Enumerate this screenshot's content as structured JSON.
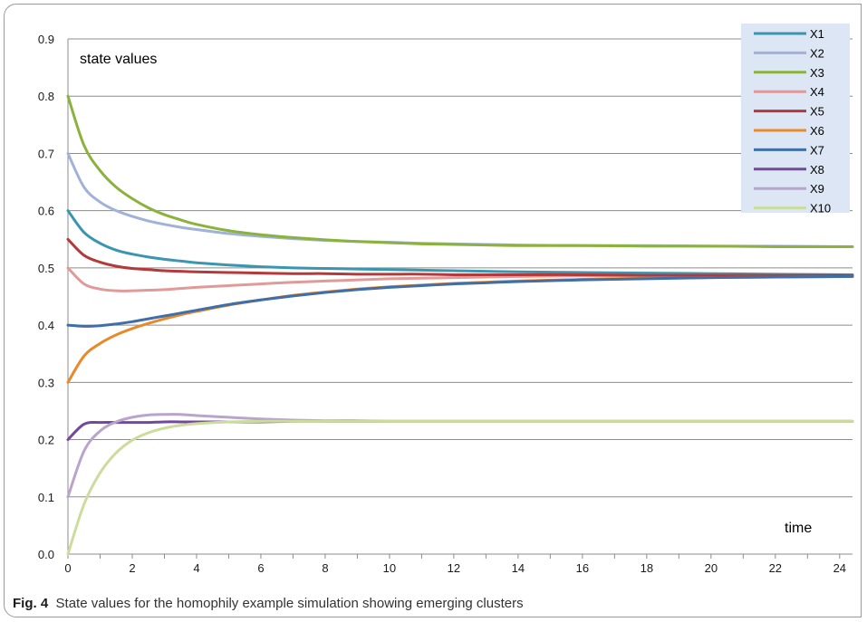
{
  "caption": {
    "label": "Fig. 4",
    "text": "State values for the homophily example simulation showing emerging clusters"
  },
  "chart_data": {
    "type": "line",
    "title": "",
    "ylabel": "state values",
    "xlabel": "time",
    "xlim": [
      0,
      24.4
    ],
    "ylim": [
      0,
      0.9
    ],
    "xticks": [
      0,
      2,
      4,
      6,
      8,
      10,
      12,
      14,
      16,
      18,
      20,
      22,
      24
    ],
    "yticks": [
      "0.0",
      "0.1",
      "0.2",
      "0.3",
      "0.4",
      "0.5",
      "0.6",
      "0.7",
      "0.8",
      "0.9"
    ],
    "grid": "horizontal",
    "legend": "top-right",
    "x": [
      0,
      0.5,
      1,
      1.5,
      2,
      2.5,
      3,
      3.5,
      4,
      5,
      6,
      7,
      8,
      9,
      10,
      11,
      12,
      13,
      14,
      16,
      18,
      20,
      22,
      24.4
    ],
    "series": [
      {
        "name": "X1",
        "color": "#3a96b0",
        "values": [
          0.6,
          0.562,
          0.543,
          0.531,
          0.524,
          0.519,
          0.515,
          0.512,
          0.509,
          0.505,
          0.502,
          0.5,
          0.499,
          0.498,
          0.497,
          0.496,
          0.495,
          0.494,
          0.493,
          0.492,
          0.491,
          0.49,
          0.489,
          0.488
        ]
      },
      {
        "name": "X2",
        "color": "#a0b2d8",
        "values": [
          0.7,
          0.641,
          0.615,
          0.6,
          0.59,
          0.582,
          0.576,
          0.571,
          0.567,
          0.56,
          0.555,
          0.551,
          0.548,
          0.546,
          0.545,
          0.543,
          0.542,
          0.541,
          0.54,
          0.539,
          0.539,
          0.538,
          0.538,
          0.537
        ]
      },
      {
        "name": "X3",
        "color": "#8bb23c",
        "values": [
          0.8,
          0.714,
          0.67,
          0.641,
          0.621,
          0.605,
          0.593,
          0.584,
          0.576,
          0.565,
          0.558,
          0.553,
          0.549,
          0.546,
          0.544,
          0.542,
          0.541,
          0.54,
          0.539,
          0.539,
          0.538,
          0.538,
          0.537,
          0.537
        ]
      },
      {
        "name": "X4",
        "color": "#e09a98",
        "values": [
          0.5,
          0.472,
          0.463,
          0.46,
          0.46,
          0.461,
          0.462,
          0.464,
          0.466,
          0.469,
          0.472,
          0.475,
          0.477,
          0.479,
          0.481,
          0.482,
          0.483,
          0.484,
          0.485,
          0.486,
          0.486,
          0.487,
          0.487,
          0.487
        ]
      },
      {
        "name": "X5",
        "color": "#b5383a",
        "values": [
          0.55,
          0.522,
          0.51,
          0.503,
          0.499,
          0.497,
          0.495,
          0.494,
          0.493,
          0.492,
          0.491,
          0.49,
          0.49,
          0.489,
          0.489,
          0.489,
          0.488,
          0.488,
          0.488,
          0.488,
          0.487,
          0.487,
          0.487,
          0.487
        ]
      },
      {
        "name": "X6",
        "color": "#e88a2a",
        "values": [
          0.3,
          0.346,
          0.368,
          0.383,
          0.394,
          0.403,
          0.411,
          0.418,
          0.424,
          0.435,
          0.444,
          0.452,
          0.458,
          0.463,
          0.467,
          0.47,
          0.473,
          0.475,
          0.477,
          0.48,
          0.482,
          0.483,
          0.484,
          0.485
        ]
      },
      {
        "name": "X7",
        "color": "#3f6ea8",
        "values": [
          0.4,
          0.398,
          0.399,
          0.402,
          0.406,
          0.411,
          0.416,
          0.421,
          0.426,
          0.436,
          0.444,
          0.451,
          0.457,
          0.462,
          0.466,
          0.469,
          0.472,
          0.474,
          0.476,
          0.479,
          0.481,
          0.483,
          0.484,
          0.485
        ]
      },
      {
        "name": "X8",
        "color": "#74489c",
        "values": [
          0.2,
          0.227,
          0.23,
          0.23,
          0.23,
          0.23,
          0.231,
          0.231,
          0.231,
          0.231,
          0.231,
          0.232,
          0.232,
          0.232,
          0.232,
          0.232,
          0.232,
          0.232,
          0.232,
          0.232,
          0.232,
          0.232,
          0.232,
          0.232
        ]
      },
      {
        "name": "X9",
        "color": "#b8a4cc",
        "values": [
          0.1,
          0.18,
          0.215,
          0.231,
          0.239,
          0.243,
          0.244,
          0.244,
          0.242,
          0.239,
          0.236,
          0.234,
          0.233,
          0.233,
          0.232,
          0.232,
          0.232,
          0.232,
          0.232,
          0.232,
          0.232,
          0.232,
          0.232,
          0.232
        ]
      },
      {
        "name": "X10",
        "color": "#cbdc9c",
        "values": [
          0.0,
          0.087,
          0.142,
          0.177,
          0.199,
          0.212,
          0.22,
          0.225,
          0.228,
          0.231,
          0.232,
          0.232,
          0.232,
          0.232,
          0.232,
          0.232,
          0.232,
          0.232,
          0.232,
          0.232,
          0.232,
          0.232,
          0.232,
          0.232
        ]
      }
    ]
  }
}
